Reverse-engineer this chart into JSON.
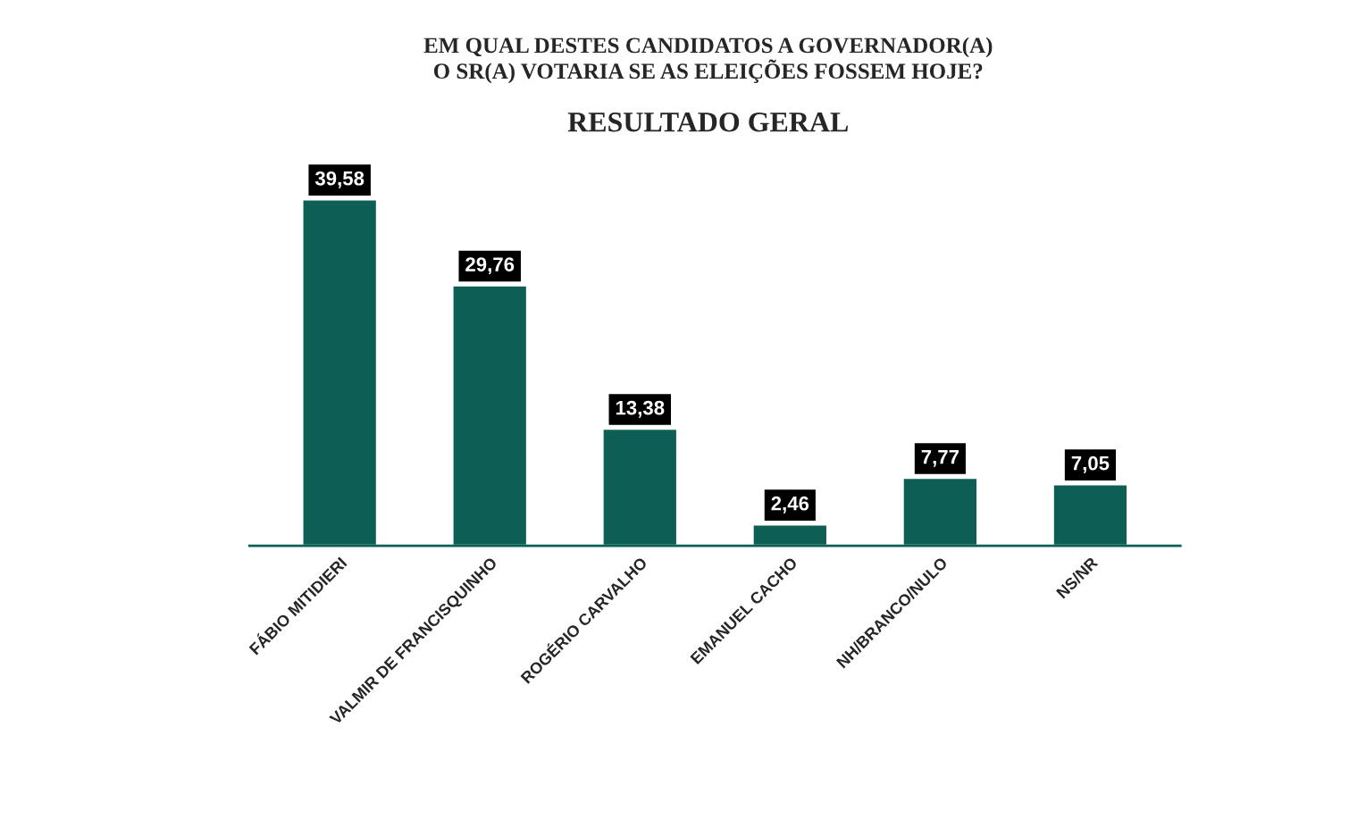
{
  "chart_data": {
    "type": "bar",
    "title": "EM QUAL DESTES CANDIDATOS A GOVERNADOR(A)\nO SR(A) VOTARIA SE AS ELEIÇÕES FOSSEM HOJE?",
    "subtitle": "RESULTADO GERAL",
    "categories": [
      "FÁBIO MITIDIERI",
      "VALMIR DE FRANCISQUINHO",
      "ROGÉRIO CARVALHO",
      "EMANUEL CACHO",
      "NH/BRANCO/NULO",
      "NS/NR"
    ],
    "values": [
      39.58,
      29.76,
      13.38,
      2.46,
      7.77,
      7.05
    ],
    "value_labels": [
      "39,58",
      "29,76",
      "13,38",
      "2,46",
      "7,77",
      "7,05"
    ],
    "color": "#0d5f55",
    "grid": false,
    "legend": false
  }
}
